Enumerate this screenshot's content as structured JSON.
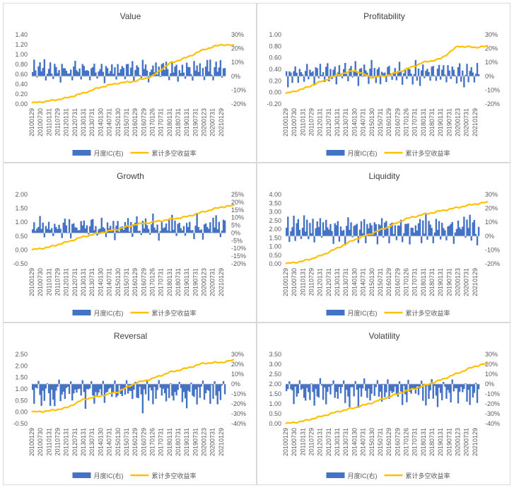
{
  "legend": {
    "bar_label": "月度IC(右)",
    "line_label": "累计多空收益率",
    "bar_color": "#4472c4",
    "line_color": "#ffc000"
  },
  "x_tick_labels": [
    "20100129",
    "20100730",
    "20110131",
    "20110729",
    "20120131",
    "20120731",
    "20130131",
    "20130731",
    "20140130",
    "20140731",
    "20150130",
    "20150731",
    "20160129",
    "20160729",
    "20170126",
    "20170731",
    "20180131",
    "20180731",
    "20190131",
    "20190731",
    "20200123",
    "20200731",
    "20210129"
  ],
  "chart_data": [
    {
      "type": "bar+line",
      "title": "Value",
      "left_axis": {
        "ticks": [
          "0.00",
          "0.20",
          "0.40",
          "0.60",
          "0.80",
          "1.00",
          "1.20",
          "1.40"
        ],
        "ylim": [
          0,
          1.4
        ]
      },
      "right_axis": {
        "ticks": [
          "30%",
          "20%",
          "10%",
          "0%",
          "-10%",
          "-20%"
        ],
        "ylim": [
          -0.2,
          0.3
        ]
      },
      "line": {
        "x_index": [
          0,
          2,
          4,
          6,
          8,
          10,
          12,
          14,
          16,
          18,
          20,
          22,
          23.5
        ],
        "values": [
          0.02,
          0.06,
          0.12,
          0.22,
          0.34,
          0.42,
          0.46,
          0.56,
          0.82,
          0.94,
          1.1,
          1.2,
          1.18
        ]
      },
      "ic_pattern": [
        0.05,
        0.12,
        0.06,
        -0.03,
        0.09,
        0.11,
        0.04,
        0.07,
        0.13,
        -0.04,
        0.06,
        0.08,
        0.1,
        0.03,
        -0.02,
        0.12,
        0.07,
        0.09,
        0.05,
        -0.05,
        0.11,
        0.06,
        0.08,
        0.04,
        0.1,
        0.02,
        0.07,
        -0.03,
        0.09,
        0.12
      ]
    },
    {
      "type": "bar+line",
      "title": "Profitability",
      "left_axis": {
        "ticks": [
          "-0.20",
          "0.00",
          "0.20",
          "0.40",
          "0.60",
          "0.80",
          "1.00"
        ],
        "ylim": [
          -0.2,
          1.0
        ]
      },
      "right_axis": {
        "ticks": [
          "30%",
          "20%",
          "10%",
          "0%",
          "-10%",
          "-20%"
        ],
        "ylim": [
          -0.2,
          0.3
        ]
      },
      "line": {
        "x_index": [
          0,
          2,
          4,
          6,
          8,
          10,
          12,
          14,
          16,
          18,
          20,
          22,
          23.5
        ],
        "values": [
          -0.02,
          0.06,
          0.18,
          0.3,
          0.38,
          0.26,
          0.3,
          0.4,
          0.52,
          0.58,
          0.8,
          0.78,
          0.8
        ]
      },
      "ic_pattern": [
        0.06,
        -0.08,
        0.05,
        0.09,
        -0.06,
        0.04,
        0.08,
        0.03,
        -0.05,
        0.07,
        0.1,
        0.02,
        -0.04,
        0.06,
        0.09,
        -0.03,
        0.05,
        0.11,
        0.04,
        -0.07,
        0.08,
        0.06,
        -0.02,
        0.09,
        0.05,
        0.03,
        -0.06,
        0.07,
        0.12,
        -0.04
      ]
    },
    {
      "type": "bar+line",
      "title": "Growth",
      "left_axis": {
        "ticks": [
          "-0.50",
          "0.00",
          "0.50",
          "1.00",
          "1.50",
          "2.00"
        ],
        "ylim": [
          -0.5,
          2.0
        ]
      },
      "right_axis": {
        "ticks": [
          "25%",
          "20%",
          "15%",
          "10%",
          "5%",
          "0%",
          "-5%",
          "-10%",
          "-15%",
          "-20%"
        ],
        "ylim": [
          -0.2,
          0.25
        ]
      },
      "line": {
        "x_index": [
          0,
          2,
          4,
          6,
          8,
          10,
          12,
          14,
          16,
          18,
          20,
          22,
          23.5
        ],
        "values": [
          0.0,
          0.1,
          0.28,
          0.48,
          0.62,
          0.75,
          0.92,
          1.0,
          1.1,
          1.2,
          1.38,
          1.55,
          1.6
        ]
      },
      "ic_pattern": [
        0.04,
        0.07,
        0.02,
        0.1,
        0.05,
        0.12,
        0.03,
        0.08,
        -0.03,
        0.06,
        0.09,
        0.11,
        0.02,
        0.05,
        -0.02,
        0.08,
        0.04,
        0.1,
        0.06,
        0.03,
        -0.04,
        0.07,
        0.13,
        0.05,
        0.02,
        0.09,
        -0.05,
        0.06,
        0.08,
        0.04
      ]
    },
    {
      "type": "bar+line",
      "title": "Liquidity",
      "left_axis": {
        "ticks": [
          "0.00",
          "0.50",
          "1.00",
          "1.50",
          "2.00",
          "2.50",
          "3.00",
          "3.50",
          "4.00"
        ],
        "ylim": [
          0,
          4.0
        ]
      },
      "right_axis": {
        "ticks": [
          "30%",
          "20%",
          "10%",
          "0%",
          "-10%",
          "-20%"
        ],
        "ylim": [
          -0.2,
          0.3
        ]
      },
      "line": {
        "x_index": [
          0,
          2,
          4,
          6,
          8,
          10,
          12,
          14,
          16,
          18,
          20,
          22,
          23.5
        ],
        "values": [
          0.0,
          0.15,
          0.45,
          0.9,
          1.4,
          1.75,
          2.15,
          2.6,
          2.85,
          3.05,
          3.25,
          3.45,
          3.55
        ]
      },
      "ic_pattern": [
        0.1,
        0.14,
        -0.06,
        0.12,
        0.08,
        0.16,
        -0.04,
        0.11,
        0.13,
        0.06,
        -0.07,
        0.09,
        0.15,
        0.05,
        0.12,
        -0.03,
        0.1,
        0.08,
        0.14,
        -0.05,
        0.07,
        0.11,
        0.09,
        0.13,
        -0.06,
        0.1,
        0.06,
        0.12,
        0.08,
        0.05
      ]
    },
    {
      "type": "bar+line",
      "title": "Reversal",
      "left_axis": {
        "ticks": [
          "-0.50",
          "0.00",
          "0.50",
          "1.00",
          "1.50",
          "2.00",
          "2.50"
        ],
        "ylim": [
          -0.5,
          2.5
        ]
      },
      "right_axis": {
        "ticks": [
          "30%",
          "20%",
          "10%",
          "0%",
          "-10%",
          "-20%",
          "-30%",
          "-40%"
        ],
        "ylim": [
          -0.4,
          0.3
        ]
      },
      "line": {
        "x_index": [
          0,
          2,
          4,
          6,
          8,
          10,
          12,
          14,
          16,
          18,
          20,
          22,
          23.5
        ],
        "values": [
          0.0,
          0.05,
          0.18,
          0.55,
          0.7,
          0.88,
          1.25,
          1.45,
          1.72,
          1.9,
          2.12,
          2.15,
          2.25
        ]
      },
      "ic_pattern": [
        -0.1,
        -0.2,
        -0.05,
        -0.15,
        0.04,
        -0.12,
        -0.25,
        -0.08,
        -0.18,
        -0.06,
        0.03,
        -0.14,
        -0.22,
        -0.09,
        -0.16,
        -0.3,
        -0.07,
        -0.11,
        0.05,
        -0.19,
        -0.13,
        -0.08,
        -0.21,
        -0.04,
        -0.15,
        -0.1,
        0.04,
        -0.17,
        -0.12,
        -0.06
      ]
    },
    {
      "type": "bar+line",
      "title": "Volatility",
      "left_axis": {
        "ticks": [
          "0.00",
          "0.50",
          "1.00",
          "1.50",
          "2.00",
          "2.50",
          "3.00",
          "3.50"
        ],
        "ylim": [
          0,
          3.5
        ]
      },
      "right_axis": {
        "ticks": [
          "30%",
          "20%",
          "10%",
          "0%",
          "-10%",
          "-20%",
          "-30%",
          "-40%"
        ],
        "ylim": [
          -0.4,
          0.3
        ]
      },
      "line": {
        "x_index": [
          0,
          2,
          4,
          6,
          8,
          10,
          12,
          14,
          16,
          18,
          20,
          22,
          23.5
        ],
        "values": [
          0.0,
          0.12,
          0.35,
          0.6,
          0.8,
          1.05,
          1.35,
          1.65,
          1.9,
          2.2,
          2.55,
          2.9,
          3.05
        ]
      },
      "ic_pattern": [
        -0.12,
        -0.05,
        0.04,
        -0.18,
        -0.08,
        -0.22,
        -0.03,
        -0.15,
        -0.1,
        0.05,
        -0.2,
        -0.07,
        -0.14,
        -0.26,
        -0.04,
        -0.11,
        -0.17,
        0.03,
        -0.09,
        -0.24,
        -0.06,
        -0.13,
        -0.19,
        0.06,
        -0.08,
        -0.16,
        -0.05,
        -0.21,
        -0.1,
        -0.03
      ]
    }
  ]
}
